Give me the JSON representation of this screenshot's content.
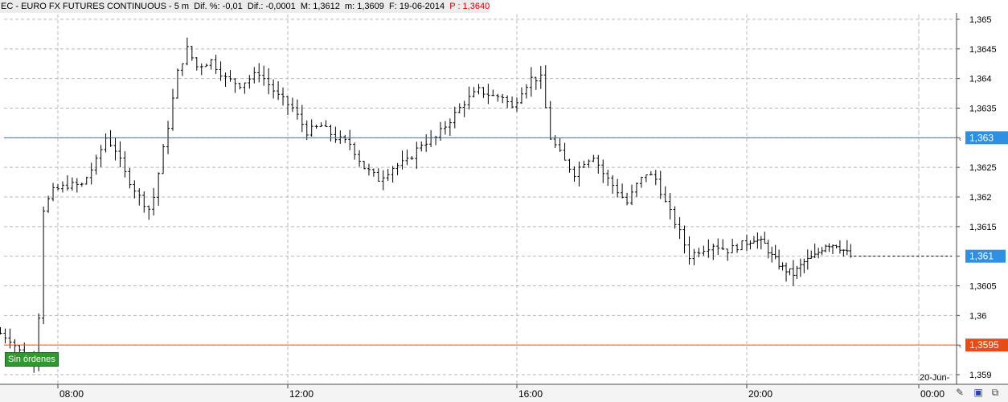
{
  "header": {
    "symbol": "EC",
    "name": "EURO FX FUTURES CONTINUOUS",
    "interval": "5 m",
    "dif_pct": "Dif. %: -0,01",
    "dif": "Dif.: -0,0001",
    "max": "M: 1,3612",
    "min": "m: 1,3609",
    "fecha": "F: 19-06-2014",
    "precio": "P : 1,3640"
  },
  "badge": {
    "label": "Sin órdenes"
  },
  "colors": {
    "blue_line": "#2f78d6",
    "red_line": "#f05a1e",
    "bars": "#000000",
    "grid": "#b8b8b8",
    "blue_tag": "#2f8fe0",
    "red_tag": "#e94b16"
  },
  "chart_data": {
    "type": "bar",
    "ylim": [
      1.3588,
      1.3652
    ],
    "y_ticks": [
      "1,365",
      "1,3645",
      "1,364",
      "1,3635",
      "1,363",
      "1,3625",
      "1,362",
      "1,3615",
      "1,361",
      "1,3605",
      "1,36",
      "1,3595",
      "1,359"
    ],
    "y_tick_values": [
      1.365,
      1.3645,
      1.364,
      1.3635,
      1.363,
      1.3625,
      1.362,
      1.3615,
      1.361,
      1.3605,
      1.36,
      1.3595,
      1.359
    ],
    "x_ticks": [
      "08:00",
      "12:00",
      "16:00",
      "20:00",
      "00:00"
    ],
    "x_tick_minutes": [
      480,
      720,
      960,
      1200,
      1440
    ],
    "date_marker": "20-Jun-",
    "horizontal_lines": [
      {
        "value": 1.363,
        "label": "1,363",
        "color": "#2f78d6"
      },
      {
        "value": 1.3595,
        "label": "1,3595",
        "color": "#f05a1e"
      }
    ],
    "last_price": {
      "value": 1.361,
      "label": "1,361"
    },
    "close_path": [
      [
        420,
        1.3597
      ],
      [
        430,
        1.3596
      ],
      [
        440,
        1.3594
      ],
      [
        450,
        1.3592
      ],
      [
        456,
        1.3593
      ],
      [
        460,
        1.36
      ],
      [
        465,
        1.3618
      ],
      [
        475,
        1.3621
      ],
      [
        490,
        1.3622
      ],
      [
        505,
        1.3622
      ],
      [
        520,
        1.3626
      ],
      [
        530,
        1.363
      ],
      [
        540,
        1.3628
      ],
      [
        550,
        1.3624
      ],
      [
        565,
        1.362
      ],
      [
        575,
        1.3618
      ],
      [
        580,
        1.362
      ],
      [
        595,
        1.3632
      ],
      [
        605,
        1.3641
      ],
      [
        615,
        1.3645
      ],
      [
        625,
        1.3642
      ],
      [
        640,
        1.3643
      ],
      [
        655,
        1.364
      ],
      [
        670,
        1.3639
      ],
      [
        690,
        1.3641
      ],
      [
        700,
        1.3639
      ],
      [
        710,
        1.3637
      ],
      [
        725,
        1.3635
      ],
      [
        740,
        1.3631
      ],
      [
        755,
        1.3632
      ],
      [
        770,
        1.363
      ],
      [
        785,
        1.3629
      ],
      [
        800,
        1.3625
      ],
      [
        815,
        1.3623
      ],
      [
        830,
        1.3625
      ],
      [
        845,
        1.3626
      ],
      [
        860,
        1.3629
      ],
      [
        875,
        1.363
      ],
      [
        890,
        1.3633
      ],
      [
        905,
        1.3636
      ],
      [
        920,
        1.3638
      ],
      [
        935,
        1.3637
      ],
      [
        945,
        1.3637
      ],
      [
        955,
        1.3635
      ],
      [
        965,
        1.3638
      ],
      [
        975,
        1.364
      ],
      [
        985,
        1.364
      ],
      [
        995,
        1.363
      ],
      [
        1010,
        1.3626
      ],
      [
        1020,
        1.3624
      ],
      [
        1030,
        1.3626
      ],
      [
        1040,
        1.3627
      ],
      [
        1050,
        1.3624
      ],
      [
        1060,
        1.3622
      ],
      [
        1075,
        1.3619
      ],
      [
        1085,
        1.3622
      ],
      [
        1095,
        1.3624
      ],
      [
        1105,
        1.3623
      ],
      [
        1115,
        1.3619
      ],
      [
        1130,
        1.3614
      ],
      [
        1140,
        1.361
      ],
      [
        1150,
        1.3611
      ],
      [
        1165,
        1.3612
      ],
      [
        1180,
        1.3611
      ],
      [
        1195,
        1.3612
      ],
      [
        1210,
        1.3613
      ],
      [
        1225,
        1.3612
      ],
      [
        1235,
        1.361
      ],
      [
        1250,
        1.3608
      ],
      [
        1265,
        1.3607
      ],
      [
        1280,
        1.3609
      ],
      [
        1295,
        1.361
      ],
      [
        1310,
        1.3612
      ],
      [
        1325,
        1.3612
      ],
      [
        1335,
        1.3611
      ],
      [
        1345,
        1.361
      ]
    ]
  }
}
